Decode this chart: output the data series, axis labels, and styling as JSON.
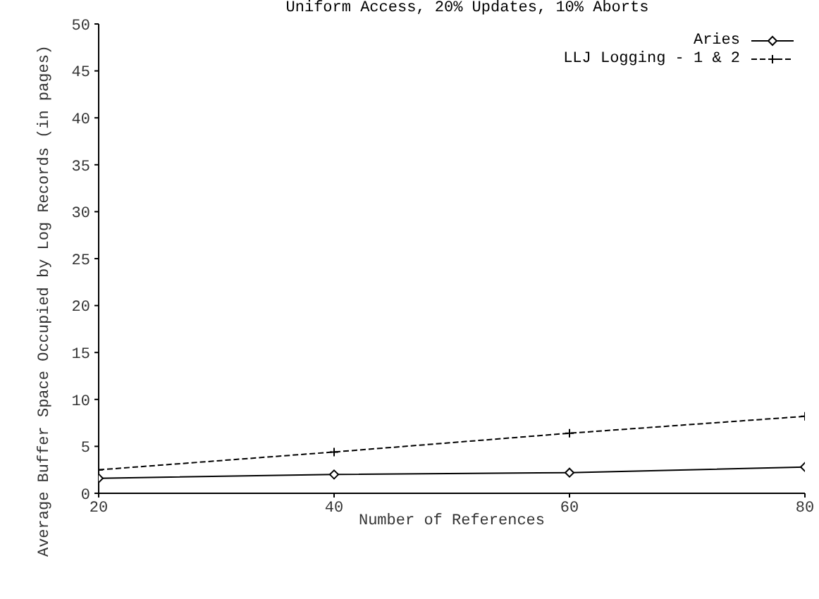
{
  "chart_data": {
    "type": "line",
    "title": "Uniform Access, 20% Updates, 10% Aborts",
    "xlabel": "Number of References",
    "ylabel": "Average Buffer Space Occupied by Log Records (in pages)",
    "x": [
      20,
      40,
      60,
      80
    ],
    "series": [
      {
        "name": "Aries",
        "color": "#000000",
        "values": [
          1.6,
          2.0,
          2.2,
          2.8
        ],
        "marker": "diamond",
        "line_style": "solid"
      },
      {
        "name": "LLJ Logging - 1 & 2",
        "color": "#000000",
        "values": [
          2.5,
          4.4,
          6.4,
          8.2
        ],
        "marker": "cross",
        "line_style": "dashed"
      }
    ],
    "xlim": [
      20,
      80
    ],
    "xticks": [
      20,
      40,
      60,
      80
    ],
    "ylim": [
      0,
      50
    ],
    "yticks": [
      0,
      5,
      10,
      15,
      20,
      25,
      30,
      35,
      40,
      45,
      50
    ],
    "grid": false,
    "legend": "top right"
  }
}
